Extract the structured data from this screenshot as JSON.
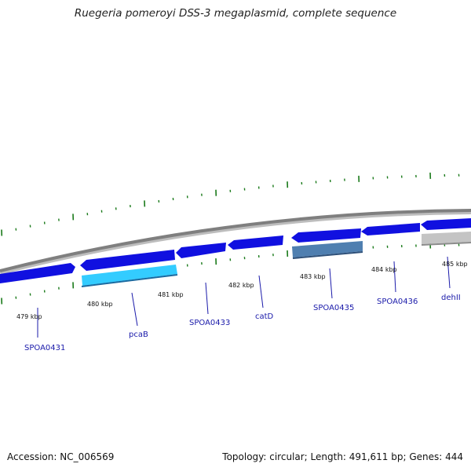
{
  "title": "Ruegeria pomeroyi DSS-3 megaplasmid, complete sequence",
  "footer": {
    "accession": "Accession: NC_006569",
    "summary": "Topology: circular; Length: 491,611 bp; Genes: 444"
  },
  "colors": {
    "backbone": "#888888",
    "gene_forward": "#1010e0",
    "gene_reverse": "#1010e0",
    "gene_cyan": "#33ccff",
    "gene_steel": "#4f7fb0",
    "gene_gray": "#c4c4c4",
    "tick_green": "#1a7a1a",
    "label_blue": "#1a1aaa"
  },
  "scale_labels": [
    "479 kbp",
    "480 kbp",
    "481 kbp",
    "482 kbp",
    "483 kbp",
    "484 kbp",
    "485 kbp"
  ],
  "gene_labels": [
    "SPOA0431",
    "pcaB",
    "SPOA0433",
    "catD",
    "SPOA0435",
    "SPOA0436",
    "dehII"
  ],
  "features": [
    {
      "name": "gene-0431",
      "strand": "forward",
      "color": "gene_forward"
    },
    {
      "name": "gene-pcaB-top",
      "strand": "reverse",
      "color": "gene_reverse"
    },
    {
      "name": "gene-pcaB-bottom",
      "strand": "none",
      "color": "gene_cyan"
    },
    {
      "name": "gene-0433",
      "strand": "reverse",
      "color": "gene_reverse"
    },
    {
      "name": "gene-catD",
      "strand": "reverse",
      "color": "gene_reverse"
    },
    {
      "name": "gene-0435-top",
      "strand": "reverse",
      "color": "gene_reverse"
    },
    {
      "name": "gene-0435-bottom",
      "strand": "none",
      "color": "gene_steel"
    },
    {
      "name": "gene-0436",
      "strand": "reverse",
      "color": "gene_reverse"
    },
    {
      "name": "gene-485-top",
      "strand": "reverse",
      "color": "gene_reverse"
    },
    {
      "name": "gene-dehII",
      "strand": "none",
      "color": "gene_gray"
    }
  ]
}
